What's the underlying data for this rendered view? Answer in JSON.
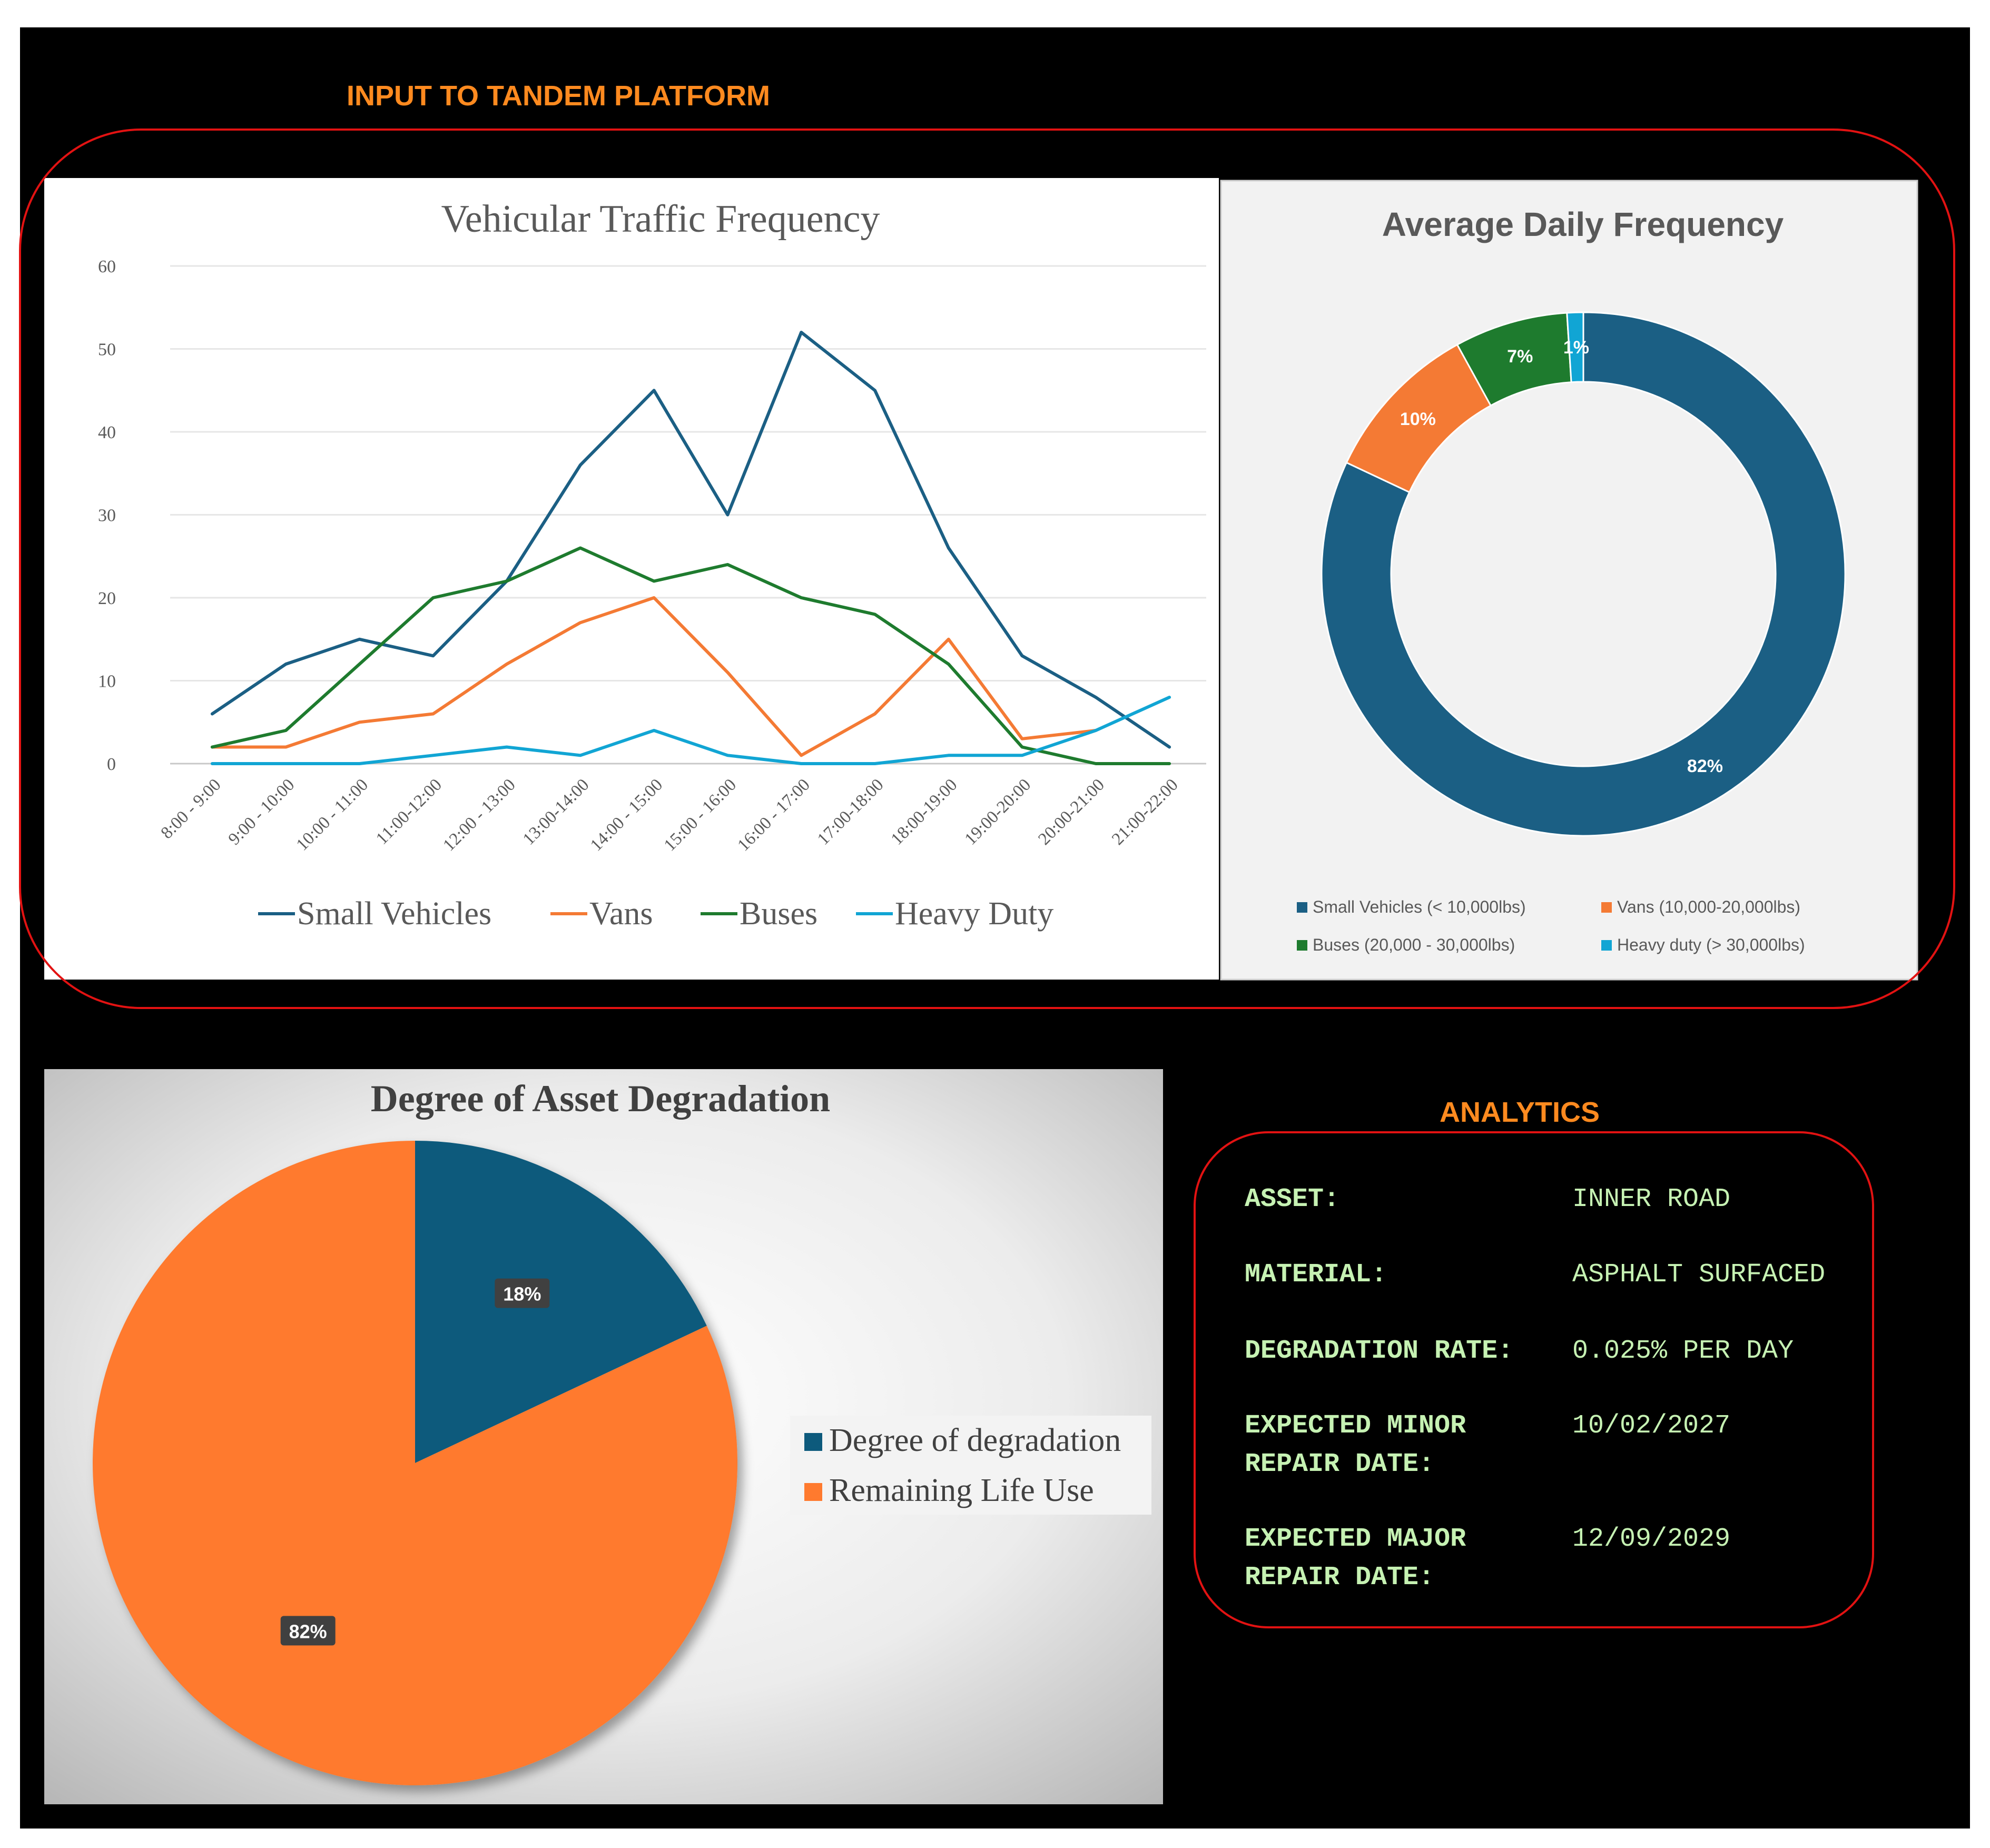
{
  "colors": {
    "small": "#1B5F84",
    "vans": "#F47A34",
    "buses": "#1E7B2E",
    "heavy": "#11A5D4",
    "frame_red": "#E21212",
    "title_orange": "#FF8A1F",
    "analytics_text": "#C6F2B3",
    "pie_dark": "#0D5A7C",
    "pie_orange": "#FF7A2E"
  },
  "header": {
    "title": "INPUT TO TANDEM PLATFORM"
  },
  "analytics": {
    "title": "ANALYTICS",
    "rows": [
      {
        "label_lines": [
          "ASSET:"
        ],
        "value": "INNER ROAD"
      },
      {
        "label_lines": [
          "MATERIAL:"
        ],
        "value": "ASPHALT SURFACED"
      },
      {
        "label_lines": [
          "DEGRADATION RATE:"
        ],
        "value": "0.025% PER DAY"
      },
      {
        "label_lines": [
          "EXPECTED MINOR",
          "REPAIR DATE:"
        ],
        "value": "10/02/2027"
      },
      {
        "label_lines": [
          "EXPECTED MAJOR",
          "REPAIR DATE:"
        ],
        "value": "12/09/2029"
      }
    ]
  },
  "chart_data": [
    {
      "type": "line",
      "title": "Vehicular Traffic Frequency",
      "xlabel": "",
      "ylabel": "",
      "ylim": [
        0,
        60
      ],
      "yticks": [
        "0",
        "10",
        "20",
        "30",
        "40",
        "50",
        "60"
      ],
      "categories": [
        "8:00 - 9:00",
        "9:00 - 10:00",
        "10:00 - 11:00",
        "11:00-12:00",
        "12:00 - 13:00",
        "13:00-14:00",
        "14:00 - 15:00",
        "15:00 - 16:00",
        "16:00 - 17:00",
        "17:00-18:00",
        "18:00-19:00",
        "19:00-20:00",
        "20:00-21:00",
        "21:00-22:00"
      ],
      "series": [
        {
          "name": "Small Vehicles",
          "color": "#1B5F84",
          "values": [
            6,
            12,
            15,
            13,
            22,
            36,
            45,
            30,
            52,
            45,
            26,
            13,
            8,
            2
          ]
        },
        {
          "name": "Vans",
          "color": "#F47A34",
          "values": [
            2,
            2,
            5,
            6,
            12,
            17,
            20,
            11,
            1,
            6,
            15,
            3,
            4,
            null
          ]
        },
        {
          "name": "Buses",
          "color": "#1E7B2E",
          "values": [
            2,
            4,
            12,
            20,
            22,
            26,
            22,
            24,
            20,
            18,
            12,
            2,
            0,
            0
          ]
        },
        {
          "name": "Heavy Duty",
          "color": "#11A5D4",
          "values": [
            0,
            0,
            0,
            1,
            2,
            1,
            4,
            1,
            0,
            0,
            1,
            1,
            4,
            8
          ]
        }
      ],
      "legend": "bottom"
    },
    {
      "type": "pie",
      "variant": "donut",
      "title": "Average Daily Frequency",
      "slices": [
        {
          "name": "Small Vehicles (< 10,000lbs)",
          "value": 82,
          "label": "82%",
          "color": "#1B5F84"
        },
        {
          "name": "Vans (10,000-20,000lbs)",
          "value": 10,
          "label": "10%",
          "color": "#F47A34"
        },
        {
          "name": "Buses (20,000 - 30,000lbs)",
          "value": 7,
          "label": "7%",
          "color": "#1E7B2E"
        },
        {
          "name": "Heavy duty (> 30,000lbs)",
          "value": 1,
          "label": "1%",
          "color": "#11A5D4"
        }
      ],
      "legend": "bottom"
    },
    {
      "type": "pie",
      "title": "Degree of Asset Degradation",
      "slices": [
        {
          "name": "Degree of degradation",
          "value": 18,
          "label": "18%",
          "color": "#0D5A7C"
        },
        {
          "name": "Remaining Life Use",
          "value": 82,
          "label": "82%",
          "color": "#FF7A2E"
        }
      ],
      "legend": "right"
    }
  ]
}
